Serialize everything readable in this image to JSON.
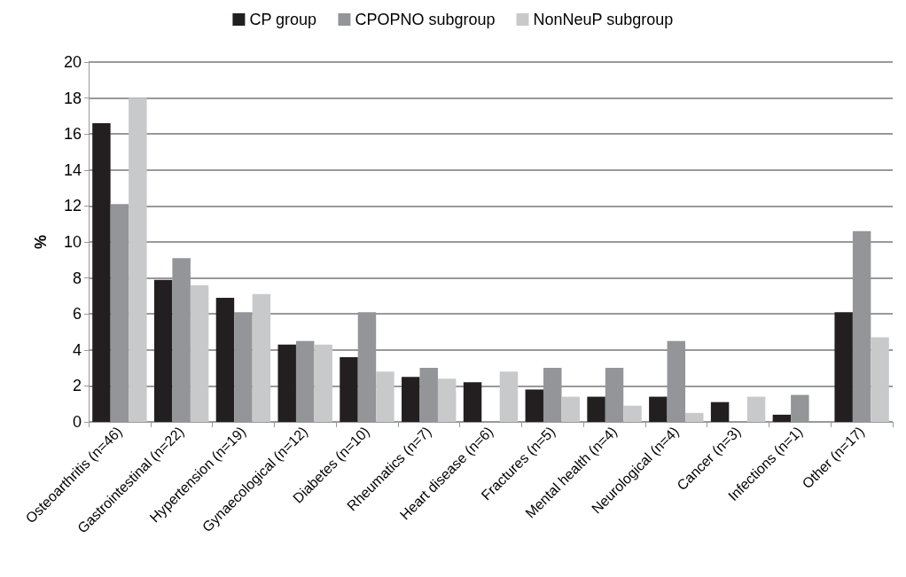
{
  "chart_data": {
    "type": "bar",
    "ylabel": "%",
    "categories": [
      "Osteoarthritis (n=46)",
      "Gastrointestinal (n=22)",
      "Hypertension (n=19)",
      "Gynaecological (n=12)",
      "Diabetes (n=10)",
      "Rheumatics (n=7)",
      "Heart disease (n=6)",
      "Fractures (n=5)",
      "Mental health (n=4)",
      "Neurological (n=4)",
      "Cancer (n=3)",
      "Infections (n=1)",
      "Other (n=17)"
    ],
    "series": [
      {
        "name": "CP group",
        "color": "#231f20",
        "values": [
          16.6,
          7.9,
          6.9,
          4.3,
          3.6,
          2.5,
          2.2,
          1.8,
          1.4,
          1.4,
          1.1,
          0.4,
          6.1
        ]
      },
      {
        "name": "CPOPNO subgroup",
        "color": "#939598",
        "values": [
          12.1,
          9.1,
          6.1,
          4.5,
          6.1,
          3.0,
          0,
          3.0,
          3.0,
          4.5,
          0,
          1.5,
          10.6
        ]
      },
      {
        "name": "NonNeuP subgroup",
        "color": "#c8c9ca",
        "values": [
          18.0,
          7.6,
          7.1,
          4.3,
          2.8,
          2.4,
          2.8,
          1.4,
          0.9,
          0.5,
          1.4,
          0,
          4.7
        ]
      }
    ],
    "ylim": [
      0,
      20
    ],
    "yticks": [
      0,
      2,
      4,
      6,
      8,
      10,
      12,
      14,
      16,
      18,
      20
    ],
    "grid": "y",
    "legend": "top"
  }
}
